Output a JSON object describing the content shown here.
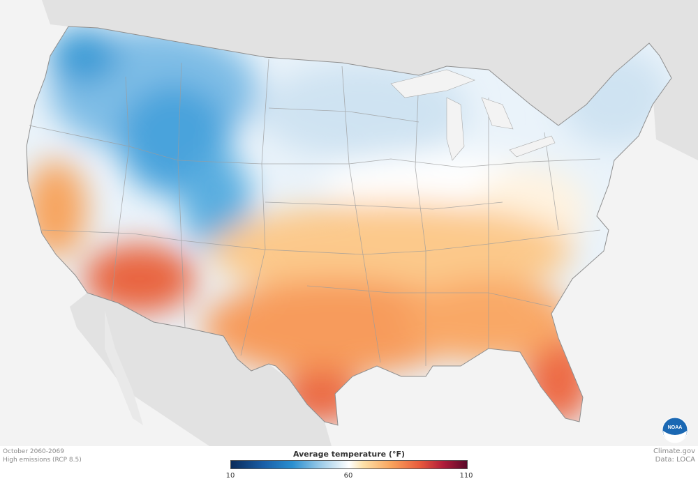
{
  "period": "October 2060-2069",
  "scenario": "High emissions (RCP 8.5)",
  "legend": {
    "title": "Average temperature (°F)",
    "ticks": [
      "10",
      "60",
      "110"
    ],
    "min": 10,
    "max": 110
  },
  "credits": {
    "site": "Climate.gov",
    "data": "Data: LOCA"
  },
  "logo": {
    "text": "NOAA"
  },
  "colors": {
    "cold": "#2a8fd0",
    "neutral": "#ffffff",
    "warm": "#f9a35c",
    "hot": "#e85a3c"
  }
}
